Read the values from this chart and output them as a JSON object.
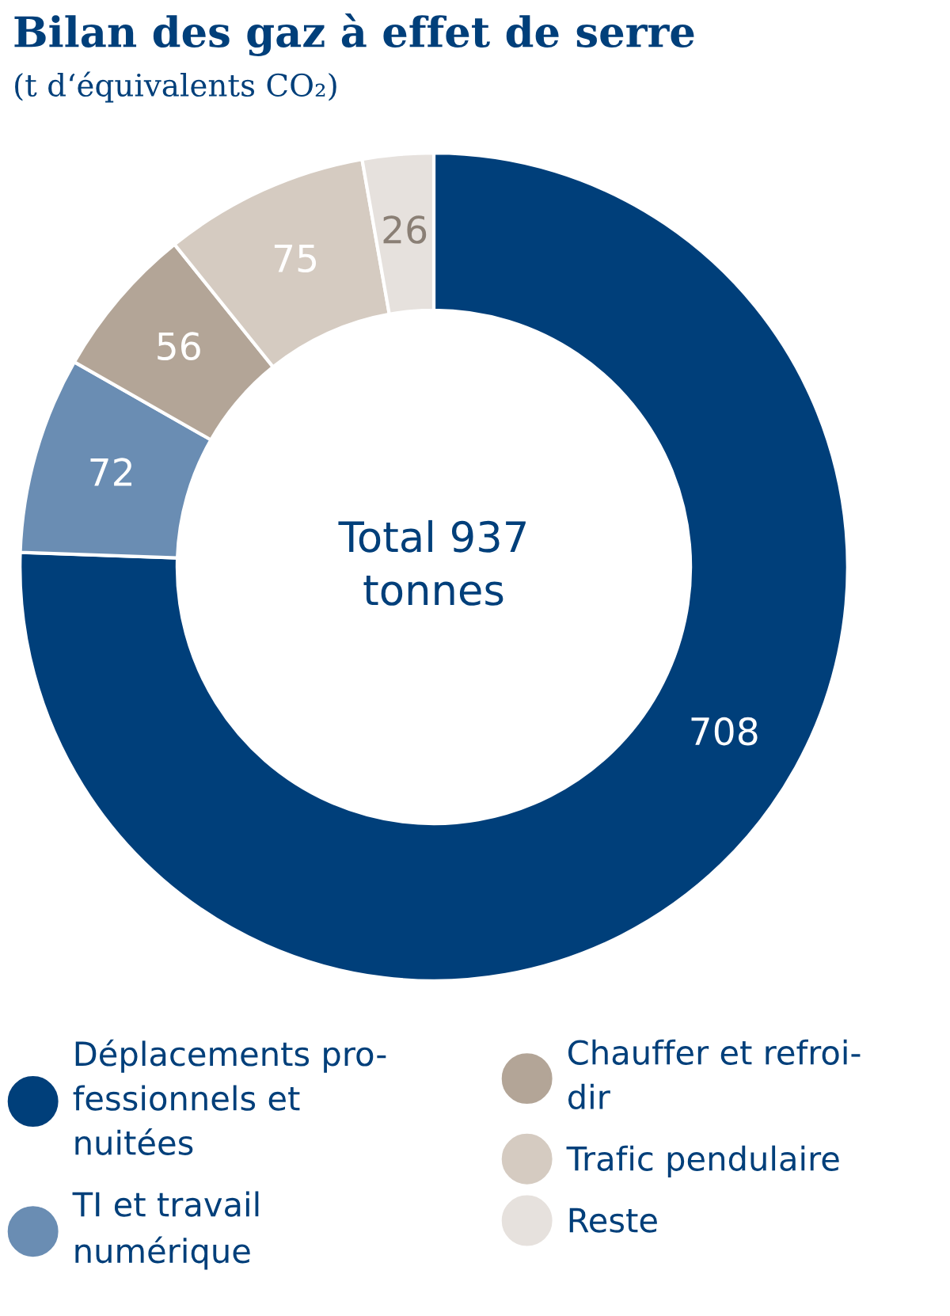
{
  "chart_data": {
    "type": "donut",
    "title": "Bilan des gaz à effet de serre",
    "subtitle": "(t d‘équivalents CO₂)",
    "categories": [
      "Déplacements pro-\nfessionnels et\nnuitées",
      "TI et travail\nnumérique",
      "Chauffer et refroi-\ndir",
      "Trafic pendulaire",
      "Reste"
    ],
    "values": [
      708,
      72,
      56,
      75,
      26
    ],
    "colors": [
      "#003f7a",
      "#6a8db3",
      "#b3a597",
      "#d5cbc1",
      "#e6e1dd"
    ],
    "data_labels": true,
    "legend": "bottom",
    "annotations": [
      "Total 937\ntonnes"
    ]
  }
}
